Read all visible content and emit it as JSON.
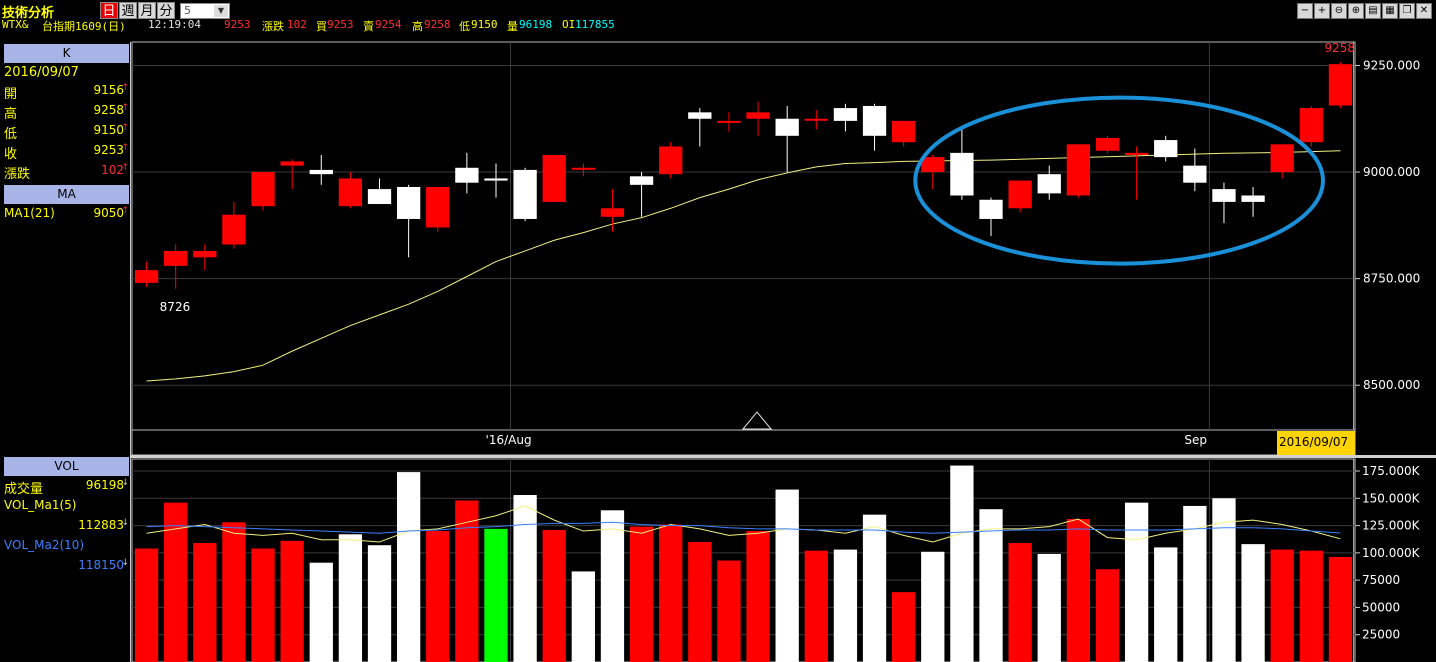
{
  "app": {
    "title": "技術分析",
    "period_buttons": [
      "日",
      "週",
      "月",
      "分"
    ],
    "count_value": "5"
  },
  "quote": {
    "symbol": "WTX&",
    "name": "台指期1609(日)",
    "time": "12:19:04",
    "last": "9253",
    "change_label": "漲跌",
    "change": "102",
    "bid_label": "買",
    "bid": "9253",
    "ask_label": "賣",
    "ask": "9254",
    "high_label": "高",
    "high": "9258",
    "low_label": "低",
    "low": "9150",
    "volume_label": "量",
    "volume": "96198",
    "oi_label": "OI",
    "oi": "117855"
  },
  "k_panel": {
    "header": "K",
    "date": "2016/09/07",
    "rows": [
      {
        "label": "開",
        "value": "9156"
      },
      {
        "label": "高",
        "value": "9258"
      },
      {
        "label": "低",
        "value": "9150"
      },
      {
        "label": "收",
        "value": "9253"
      },
      {
        "label": "漲跌",
        "value": "102"
      }
    ]
  },
  "ma_panel": {
    "header": "MA",
    "label": "MA1(21)",
    "value": "9050"
  },
  "vol_panel": {
    "header": "VOL",
    "volume_label": "成交量",
    "volume_value": "96198",
    "ma1_label": "VOL_Ma1(5)",
    "ma1_value": "112883",
    "ma2_label": "VOL_Ma2(10)",
    "ma2_value": "118150"
  },
  "colors": {
    "up": "#ff0000",
    "down": "#ffffff",
    "neutral": "#00ff00",
    "ma_line": "#f0f080",
    "vol_ma2": "#3a80ff",
    "ellipse": "#1a90d8",
    "date_tag_bg": "#ffd400"
  },
  "chart_data": [
    {
      "type": "candlestick",
      "y_ticks": [
        "9250.000",
        "9000.000",
        "8750.000",
        "8500.000"
      ],
      "y_tick_values": [
        9250,
        9000,
        8750,
        8500
      ],
      "ylim": [
        8395,
        9305
      ],
      "x_labels": [
        {
          "label": "'16/Aug",
          "index": 13
        },
        {
          "label": "Sep",
          "index": 37
        }
      ],
      "date_tag": "2016/09/07",
      "annotations": [
        {
          "text": "9258",
          "index": 41,
          "value": 9258
        },
        {
          "text": "8726",
          "index": 1,
          "value": 8726
        }
      ],
      "highlight_ellipse": {
        "from_index": 27,
        "to_index": 40,
        "center_value": 8980
      },
      "candles": [
        {
          "o": 8740,
          "h": 8790,
          "l": 8730,
          "c": 8770
        },
        {
          "o": 8780,
          "h": 8830,
          "l": 8726,
          "c": 8815
        },
        {
          "o": 8800,
          "h": 8830,
          "l": 8770,
          "c": 8815
        },
        {
          "o": 8830,
          "h": 8930,
          "l": 8820,
          "c": 8900
        },
        {
          "o": 8920,
          "h": 9000,
          "l": 8910,
          "c": 9000
        },
        {
          "o": 9015,
          "h": 9030,
          "l": 8960,
          "c": 9025
        },
        {
          "o": 9005,
          "h": 9040,
          "l": 8970,
          "c": 8995
        },
        {
          "o": 8920,
          "h": 9000,
          "l": 8915,
          "c": 8985
        },
        {
          "o": 8960,
          "h": 8985,
          "l": 8925,
          "c": 8925
        },
        {
          "o": 8965,
          "h": 8970,
          "l": 8800,
          "c": 8890
        },
        {
          "o": 8870,
          "h": 8965,
          "l": 8860,
          "c": 8965
        },
        {
          "o": 9010,
          "h": 9045,
          "l": 8950,
          "c": 8975
        },
        {
          "o": 8985,
          "h": 9020,
          "l": 8940,
          "c": 8980
        },
        {
          "o": 9005,
          "h": 9010,
          "l": 8885,
          "c": 8890
        },
        {
          "o": 8930,
          "h": 9040,
          "l": 8930,
          "c": 9040
        },
        {
          "o": 9010,
          "h": 9020,
          "l": 8990,
          "c": 9010
        },
        {
          "o": 8895,
          "h": 8960,
          "l": 8860,
          "c": 8915
        },
        {
          "o": 8990,
          "h": 9000,
          "l": 8895,
          "c": 8970
        },
        {
          "o": 8995,
          "h": 9070,
          "l": 8985,
          "c": 9060
        },
        {
          "o": 9140,
          "h": 9150,
          "l": 9060,
          "c": 9125
        },
        {
          "o": 9120,
          "h": 9140,
          "l": 9095,
          "c": 9120
        },
        {
          "o": 9125,
          "h": 9165,
          "l": 9085,
          "c": 9140
        },
        {
          "o": 9125,
          "h": 9155,
          "l": 9000,
          "c": 9085
        },
        {
          "o": 9125,
          "h": 9145,
          "l": 9100,
          "c": 9125
        },
        {
          "o": 9150,
          "h": 9160,
          "l": 9095,
          "c": 9120
        },
        {
          "o": 9155,
          "h": 9160,
          "l": 9050,
          "c": 9085
        },
        {
          "o": 9070,
          "h": 9120,
          "l": 9060,
          "c": 9120
        },
        {
          "o": 9000,
          "h": 9040,
          "l": 8960,
          "c": 9035
        },
        {
          "o": 9045,
          "h": 9105,
          "l": 8935,
          "c": 8945
        },
        {
          "o": 8935,
          "h": 8940,
          "l": 8850,
          "c": 8890
        },
        {
          "o": 8915,
          "h": 8980,
          "l": 8905,
          "c": 8980
        },
        {
          "o": 8995,
          "h": 9015,
          "l": 8935,
          "c": 8950
        },
        {
          "o": 8945,
          "h": 9065,
          "l": 8940,
          "c": 9065
        },
        {
          "o": 9050,
          "h": 9085,
          "l": 9045,
          "c": 9080
        },
        {
          "o": 9040,
          "h": 9060,
          "l": 8935,
          "c": 9045
        },
        {
          "o": 9075,
          "h": 9085,
          "l": 9025,
          "c": 9035
        },
        {
          "o": 9015,
          "h": 9055,
          "l": 8955,
          "c": 8975
        },
        {
          "o": 8960,
          "h": 8975,
          "l": 8880,
          "c": 8930
        },
        {
          "o": 8945,
          "h": 8965,
          "l": 8895,
          "c": 8930
        },
        {
          "o": 9000,
          "h": 9065,
          "l": 8985,
          "c": 9065
        },
        {
          "o": 9070,
          "h": 9155,
          "l": 9060,
          "c": 9150
        },
        {
          "o": 9156,
          "h": 9258,
          "l": 9150,
          "c": 9253
        }
      ],
      "ma_series": {
        "name": "MA1(21)",
        "values": [
          8510,
          8515,
          8522,
          8532,
          8547,
          8580,
          8610,
          8640,
          8665,
          8690,
          8720,
          8755,
          8790,
          8815,
          8840,
          8858,
          8878,
          8893,
          8915,
          8940,
          8960,
          8982,
          8998,
          9012,
          9020,
          9022,
          9025,
          9026,
          9027,
          9028,
          9030,
          9032,
          9034,
          9036,
          9038,
          9040,
          9042,
          9044,
          9045,
          9046,
          9048,
          9050
        ]
      }
    },
    {
      "type": "bar",
      "y_ticks": [
        "175.000K",
        "150.000K",
        "125.000K",
        "100.000K",
        "75000",
        "50000",
        "25000"
      ],
      "y_tick_values": [
        175000,
        150000,
        125000,
        100000,
        75000,
        50000,
        25000
      ],
      "ylim": [
        0,
        186000
      ],
      "series": [
        {
          "name": "成交量",
          "values": [
            104000,
            146000,
            109000,
            128000,
            104000,
            111000,
            91000,
            117000,
            107000,
            174000,
            120000,
            148000,
            122000,
            153000,
            121000,
            83000,
            139000,
            124000,
            126000,
            110000,
            93000,
            120000,
            158000,
            102000,
            103000,
            135000,
            64000,
            101000,
            180000,
            140000,
            109000,
            99000,
            131000,
            85000,
            146000,
            105000,
            143000,
            150000,
            108000,
            103000,
            102000,
            96198
          ],
          "colors": [
            "up",
            "up",
            "up",
            "up",
            "up",
            "up",
            "down",
            "down",
            "down",
            "down",
            "up",
            "up",
            "neutral",
            "down",
            "up",
            "down",
            "down",
            "up",
            "up",
            "up",
            "up",
            "up",
            "down",
            "up",
            "down",
            "down",
            "up",
            "down",
            "down",
            "down",
            "up",
            "down",
            "up",
            "up",
            "down",
            "down",
            "down",
            "down",
            "down",
            "up",
            "up",
            "up"
          ]
        },
        {
          "name": "VOL_Ma1(5)",
          "values": [
            118000,
            122000,
            126000,
            118000,
            116000,
            118000,
            112000,
            112000,
            110000,
            120000,
            122000,
            128000,
            134000,
            143000,
            130000,
            120000,
            122000,
            118000,
            126000,
            122000,
            116000,
            118000,
            122000,
            121000,
            118000,
            124000,
            116000,
            110000,
            118000,
            122000,
            122000,
            124000,
            131000,
            114000,
            112000,
            118000,
            122000,
            128000,
            130000,
            126000,
            120000,
            112883
          ]
        },
        {
          "name": "VOL_Ma2(10)",
          "values": [
            124000,
            125000,
            124000,
            123000,
            122000,
            121000,
            120000,
            119000,
            118000,
            120000,
            121000,
            123000,
            124000,
            126000,
            127000,
            127000,
            128000,
            126000,
            125000,
            125000,
            123000,
            122000,
            122000,
            121000,
            121000,
            121000,
            119000,
            118000,
            119000,
            120000,
            121000,
            121000,
            122000,
            121000,
            121000,
            121000,
            122000,
            123000,
            123000,
            122000,
            120000,
            118150
          ]
        }
      ]
    }
  ]
}
